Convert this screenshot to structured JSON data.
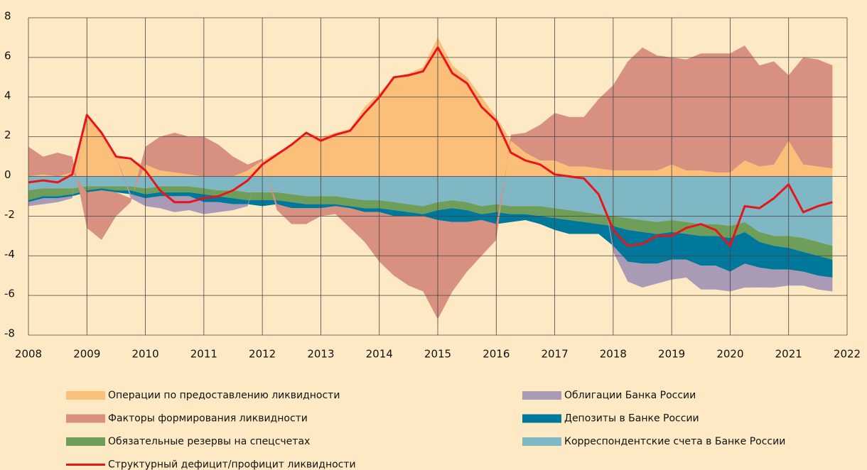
{
  "chart_data": {
    "type": "area",
    "x": [
      2008,
      2008.25,
      2008.5,
      2008.75,
      2009,
      2009.25,
      2009.5,
      2009.75,
      2010,
      2010.25,
      2010.5,
      2010.75,
      2011,
      2011.25,
      2011.5,
      2011.75,
      2012,
      2012.25,
      2012.5,
      2012.75,
      2013,
      2013.25,
      2013.5,
      2013.75,
      2014,
      2014.25,
      2014.5,
      2014.75,
      2015,
      2015.25,
      2015.5,
      2015.75,
      2016,
      2016.25,
      2016.5,
      2016.75,
      2017,
      2017.25,
      2017.5,
      2017.75,
      2018,
      2018.25,
      2018.5,
      2018.75,
      2019,
      2019.25,
      2019.5,
      2019.75,
      2020,
      2020.25,
      2020.5,
      2020.75,
      2021,
      2021.25,
      2021.5,
      2021.75
    ],
    "series": [
      {
        "name": "Операции по предоставлению ликвидности",
        "color": "#fbbf7a",
        "type": "area",
        "values": [
          0,
          0.1,
          0,
          0.2,
          3.0,
          2.2,
          1.0,
          0.8,
          0.6,
          0.3,
          0.2,
          0.1,
          0,
          0,
          0,
          0.3,
          0.8,
          1.2,
          1.6,
          2.2,
          2.0,
          2.2,
          2.4,
          3.5,
          4.2,
          5.0,
          5.2,
          5.5,
          7.0,
          5.6,
          5.0,
          4.0,
          3.0,
          1.8,
          1.2,
          0.8,
          0.8,
          0.5,
          0.5,
          0.4,
          0.3,
          0.3,
          0.3,
          0.3,
          0.6,
          0.3,
          0.3,
          0.2,
          0.2,
          0.8,
          0.5,
          0.6,
          1.8,
          0.6,
          0.5,
          0.4
        ]
      },
      {
        "name": "Факторы формирования ликвидности",
        "color": "#d89080",
        "type": "area",
        "values": [
          1.5,
          0.9,
          1.2,
          0.8,
          -1.8,
          -2.5,
          -1.2,
          -0.2,
          0.9,
          1.7,
          2.0,
          1.9,
          2.0,
          1.6,
          1.0,
          0.3,
          0.1,
          -0.3,
          -0.8,
          -0.8,
          -0.4,
          -0.4,
          -1.0,
          -1.5,
          -2.5,
          -3.0,
          -3.5,
          -3.8,
          -5.0,
          -3.5,
          -2.5,
          -1.8,
          -0.8,
          0.3,
          1.0,
          1.8,
          2.4,
          2.5,
          2.5,
          3.5,
          4.3,
          5.5,
          6.2,
          5.8,
          5.4,
          5.6,
          5.9,
          6.0,
          6.0,
          5.8,
          5.1,
          5.2,
          3.3,
          5.4,
          5.4,
          5.2
        ]
      },
      {
        "name": "Обязательные резервы на спецсчетах",
        "color": "#6e9e5a",
        "type": "area",
        "values": [
          -0.5,
          -0.4,
          -0.4,
          -0.3,
          -0.2,
          -0.1,
          -0.2,
          -0.2,
          -0.3,
          -0.3,
          -0.3,
          -0.3,
          -0.3,
          -0.3,
          -0.4,
          -0.4,
          -0.4,
          -0.4,
          -0.4,
          -0.4,
          -0.4,
          -0.4,
          -0.4,
          -0.4,
          -0.4,
          -0.4,
          -0.4,
          -0.4,
          -0.4,
          -0.4,
          -0.4,
          -0.4,
          -0.4,
          -0.4,
          -0.4,
          -0.5,
          -0.5,
          -0.5,
          -0.5,
          -0.5,
          -0.5,
          -0.6,
          -0.6,
          -0.6,
          -0.6,
          -0.6,
          -0.6,
          -0.6,
          -0.6,
          -0.5,
          -0.5,
          -0.5,
          -0.6,
          -0.7,
          -0.7,
          -0.7
        ]
      },
      {
        "name": "Структурный дефицит/профицит ликвидности",
        "color": "#e8141b",
        "type": "line",
        "values": [
          -0.3,
          -0.2,
          -0.3,
          0.1,
          3.1,
          2.2,
          1.0,
          0.9,
          0.3,
          -0.7,
          -1.3,
          -1.3,
          -1.1,
          -1.0,
          -0.7,
          -0.2,
          0.6,
          1.1,
          1.6,
          2.2,
          1.8,
          2.1,
          2.3,
          3.2,
          4.0,
          5.0,
          5.1,
          5.3,
          6.5,
          5.2,
          4.7,
          3.5,
          2.8,
          1.2,
          0.8,
          0.6,
          0.1,
          0.0,
          -0.1,
          -0.9,
          -2.7,
          -3.5,
          -3.4,
          -3.0,
          -3.0,
          -2.6,
          -2.4,
          -2.7,
          -3.5,
          -1.5,
          -1.6,
          -1.1,
          -0.4,
          -1.8,
          -1.5,
          -1.3
        ]
      },
      {
        "name": "Облигации Банка России",
        "color": "#a99ab5",
        "type": "area",
        "values": [
          -0.2,
          -0.3,
          -0.2,
          -0.1,
          0,
          0,
          0,
          -0.2,
          -0.4,
          -0.6,
          -0.8,
          -0.7,
          -0.6,
          -0.5,
          -0.3,
          -0.1,
          0,
          0,
          0,
          0,
          0,
          0,
          0,
          0,
          0,
          0,
          0,
          0,
          0,
          0,
          0,
          0,
          0,
          0,
          0,
          0,
          0,
          0,
          0,
          0,
          -0.3,
          -1.0,
          -1.2,
          -1.0,
          -1.0,
          -0.9,
          -1.2,
          -1.2,
          -1.0,
          -1.2,
          -1.0,
          -0.9,
          -0.8,
          -0.7,
          -0.7,
          -0.7
        ]
      },
      {
        "name": "Депозиты в Банке России",
        "color": "#00789c",
        "type": "area",
        "values": [
          -0.1,
          -0.1,
          -0.1,
          -0.1,
          -0.1,
          -0.1,
          -0.1,
          -0.2,
          -0.2,
          -0.2,
          -0.2,
          -0.2,
          -0.4,
          -0.3,
          -0.3,
          -0.2,
          -0.3,
          -0.2,
          -0.3,
          -0.2,
          -0.2,
          -0.1,
          -0.1,
          -0.2,
          -0.2,
          -0.3,
          -0.2,
          -0.1,
          -0.5,
          -0.7,
          -0.6,
          -0.3,
          -0.6,
          -0.4,
          -0.3,
          -0.4,
          -0.6,
          -0.7,
          -0.6,
          -0.5,
          -1.0,
          -1.6,
          -1.6,
          -1.5,
          -1.4,
          -1.3,
          -1.5,
          -1.5,
          -1.7,
          -1.6,
          -1.3,
          -1.2,
          -1.1,
          -1.0,
          -1.0,
          -0.9
        ]
      },
      {
        "name": "Корреспондентские счета в Банке России",
        "color": "#7fb8c4",
        "type": "area",
        "values": [
          -0.7,
          -0.6,
          -0.6,
          -0.6,
          -0.5,
          -0.5,
          -0.5,
          -0.5,
          -0.6,
          -0.5,
          -0.5,
          -0.5,
          -0.6,
          -0.7,
          -0.7,
          -0.8,
          -0.8,
          -0.8,
          -0.9,
          -1.0,
          -1.0,
          -1.0,
          -1.1,
          -1.2,
          -1.2,
          -1.3,
          -1.4,
          -1.5,
          -1.3,
          -1.2,
          -1.3,
          -1.5,
          -1.4,
          -1.5,
          -1.5,
          -1.5,
          -1.6,
          -1.7,
          -1.8,
          -1.9,
          -2.0,
          -2.1,
          -2.2,
          -2.3,
          -2.2,
          -2.3,
          -2.4,
          -2.4,
          -2.5,
          -2.3,
          -2.8,
          -3.0,
          -3.0,
          -3.1,
          -3.3,
          -3.5
        ]
      }
    ],
    "xlim": [
      2008,
      2022
    ],
    "xticks": [
      2008,
      2009,
      2010,
      2011,
      2012,
      2013,
      2014,
      2015,
      2016,
      2017,
      2018,
      2019,
      2020,
      2021,
      2022
    ],
    "ylim": [
      -8,
      8
    ],
    "yticks": [
      -8,
      -6,
      -4,
      -2,
      0,
      2,
      4,
      6,
      8
    ],
    "grid": true
  }
}
